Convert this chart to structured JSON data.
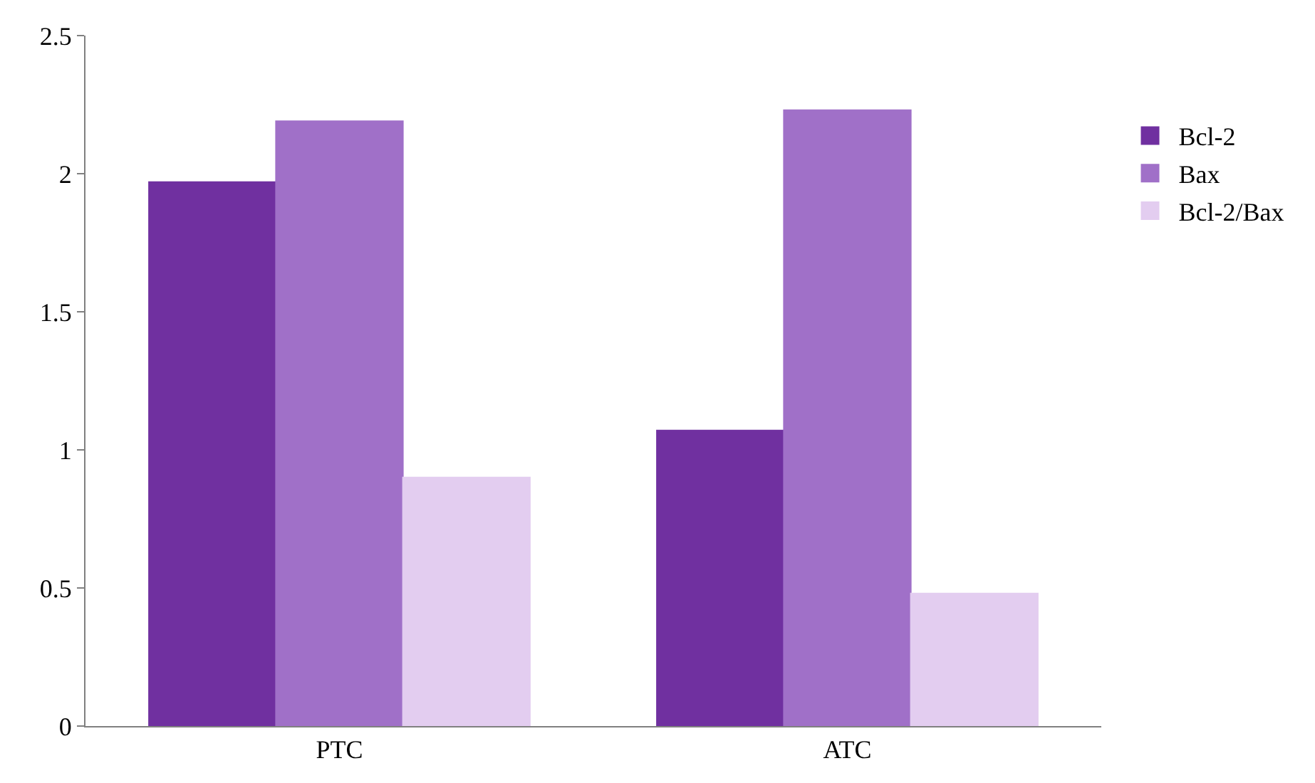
{
  "chart_data": {
    "type": "bar",
    "categories": [
      "PTC",
      "ATC"
    ],
    "series": [
      {
        "name": "Bcl-2",
        "color": "#7030a0",
        "values": [
          1.97,
          1.07
        ]
      },
      {
        "name": "Bax",
        "color": "#a070c8",
        "values": [
          2.19,
          2.23
        ]
      },
      {
        "name": "Bcl-2/Bax",
        "color": "#e3cdf0",
        "values": [
          0.9,
          0.48
        ]
      }
    ],
    "ylim": [
      0,
      2.5
    ],
    "yticks": [
      0,
      0.5,
      1,
      1.5,
      2,
      2.5
    ],
    "legend": "right"
  }
}
